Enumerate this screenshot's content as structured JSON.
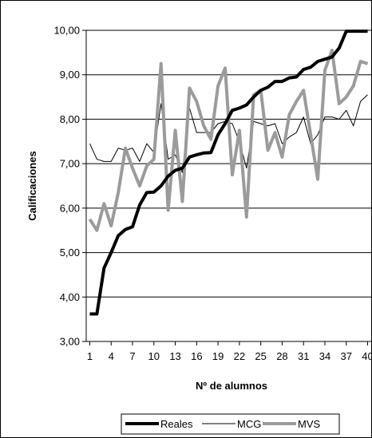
{
  "chart_data": {
    "type": "line",
    "xlabel": "Nº de alumnos",
    "ylabel": "Calificaciones",
    "ylim": [
      3,
      10
    ],
    "y_ticks": [
      "3,00",
      "4,00",
      "5,00",
      "6,00",
      "7,00",
      "8,00",
      "9,00",
      "10,00"
    ],
    "x_ticks": [
      "1",
      "4",
      "7",
      "10",
      "13",
      "16",
      "19",
      "22",
      "25",
      "28",
      "31",
      "34",
      "37",
      "40"
    ],
    "x_tick_values": [
      1,
      4,
      7,
      10,
      13,
      16,
      19,
      22,
      25,
      28,
      31,
      34,
      37,
      40
    ],
    "xlim": [
      0.5,
      40.5
    ],
    "grid": "horizontal",
    "legend_position": "bottom",
    "series": [
      {
        "name": "Reales",
        "color": "#000000",
        "x": [
          1,
          2,
          3,
          4,
          5,
          6,
          7,
          8,
          9,
          10,
          11,
          12,
          13,
          14,
          15,
          16,
          17,
          18,
          19,
          20,
          21,
          22,
          23,
          24,
          25,
          26,
          27,
          28,
          29,
          30,
          31,
          32,
          33,
          34,
          35,
          36,
          37,
          38,
          39,
          40
        ],
        "values": [
          3.62,
          3.62,
          4.65,
          5.0,
          5.38,
          5.52,
          5.58,
          6.07,
          6.35,
          6.36,
          6.5,
          6.72,
          6.85,
          6.9,
          7.15,
          7.2,
          7.24,
          7.25,
          7.65,
          7.9,
          8.2,
          8.25,
          8.32,
          8.5,
          8.65,
          8.72,
          8.85,
          8.85,
          8.93,
          8.95,
          9.12,
          9.17,
          9.3,
          9.35,
          9.4,
          9.6,
          9.98,
          9.98,
          9.98,
          9.98
        ]
      },
      {
        "name": "MCG",
        "color": "#000000",
        "x": [
          1,
          2,
          3,
          4,
          5,
          6,
          7,
          8,
          9,
          10,
          11,
          12,
          13,
          14,
          15,
          16,
          17,
          18,
          19,
          20,
          21,
          22,
          23,
          24,
          25,
          26,
          27,
          28,
          29,
          30,
          31,
          32,
          33,
          34,
          35,
          36,
          37,
          38,
          39,
          40
        ],
        "values": [
          7.45,
          7.1,
          7.05,
          7.05,
          7.35,
          7.3,
          7.35,
          7.05,
          7.45,
          7.25,
          8.35,
          7.1,
          7.2,
          6.8,
          8.25,
          7.7,
          7.7,
          7.7,
          7.9,
          7.95,
          7.9,
          7.5,
          6.9,
          7.95,
          7.9,
          7.85,
          7.9,
          7.45,
          7.6,
          7.7,
          8.05,
          7.45,
          7.65,
          8.05,
          8.05,
          8.0,
          8.2,
          7.85,
          8.4,
          8.55
        ]
      },
      {
        "name": "MVS",
        "color": "#9b9b9b",
        "x": [
          1,
          2,
          3,
          4,
          5,
          6,
          7,
          8,
          9,
          10,
          11,
          12,
          13,
          14,
          15,
          16,
          17,
          18,
          19,
          20,
          21,
          22,
          23,
          24,
          25,
          26,
          27,
          28,
          29,
          30,
          31,
          32,
          33,
          34,
          35,
          36,
          37,
          38,
          39,
          40
        ],
        "values": [
          5.75,
          5.5,
          6.1,
          5.6,
          6.35,
          7.35,
          6.9,
          6.5,
          6.95,
          7.1,
          9.25,
          5.95,
          7.75,
          6.15,
          8.7,
          8.4,
          7.85,
          7.55,
          8.75,
          9.15,
          6.75,
          7.75,
          5.8,
          8.55,
          8.65,
          7.3,
          7.7,
          7.15,
          8.1,
          8.4,
          8.65,
          7.65,
          6.65,
          9.1,
          9.55,
          8.35,
          8.5,
          8.75,
          9.3,
          9.25
        ]
      }
    ]
  }
}
